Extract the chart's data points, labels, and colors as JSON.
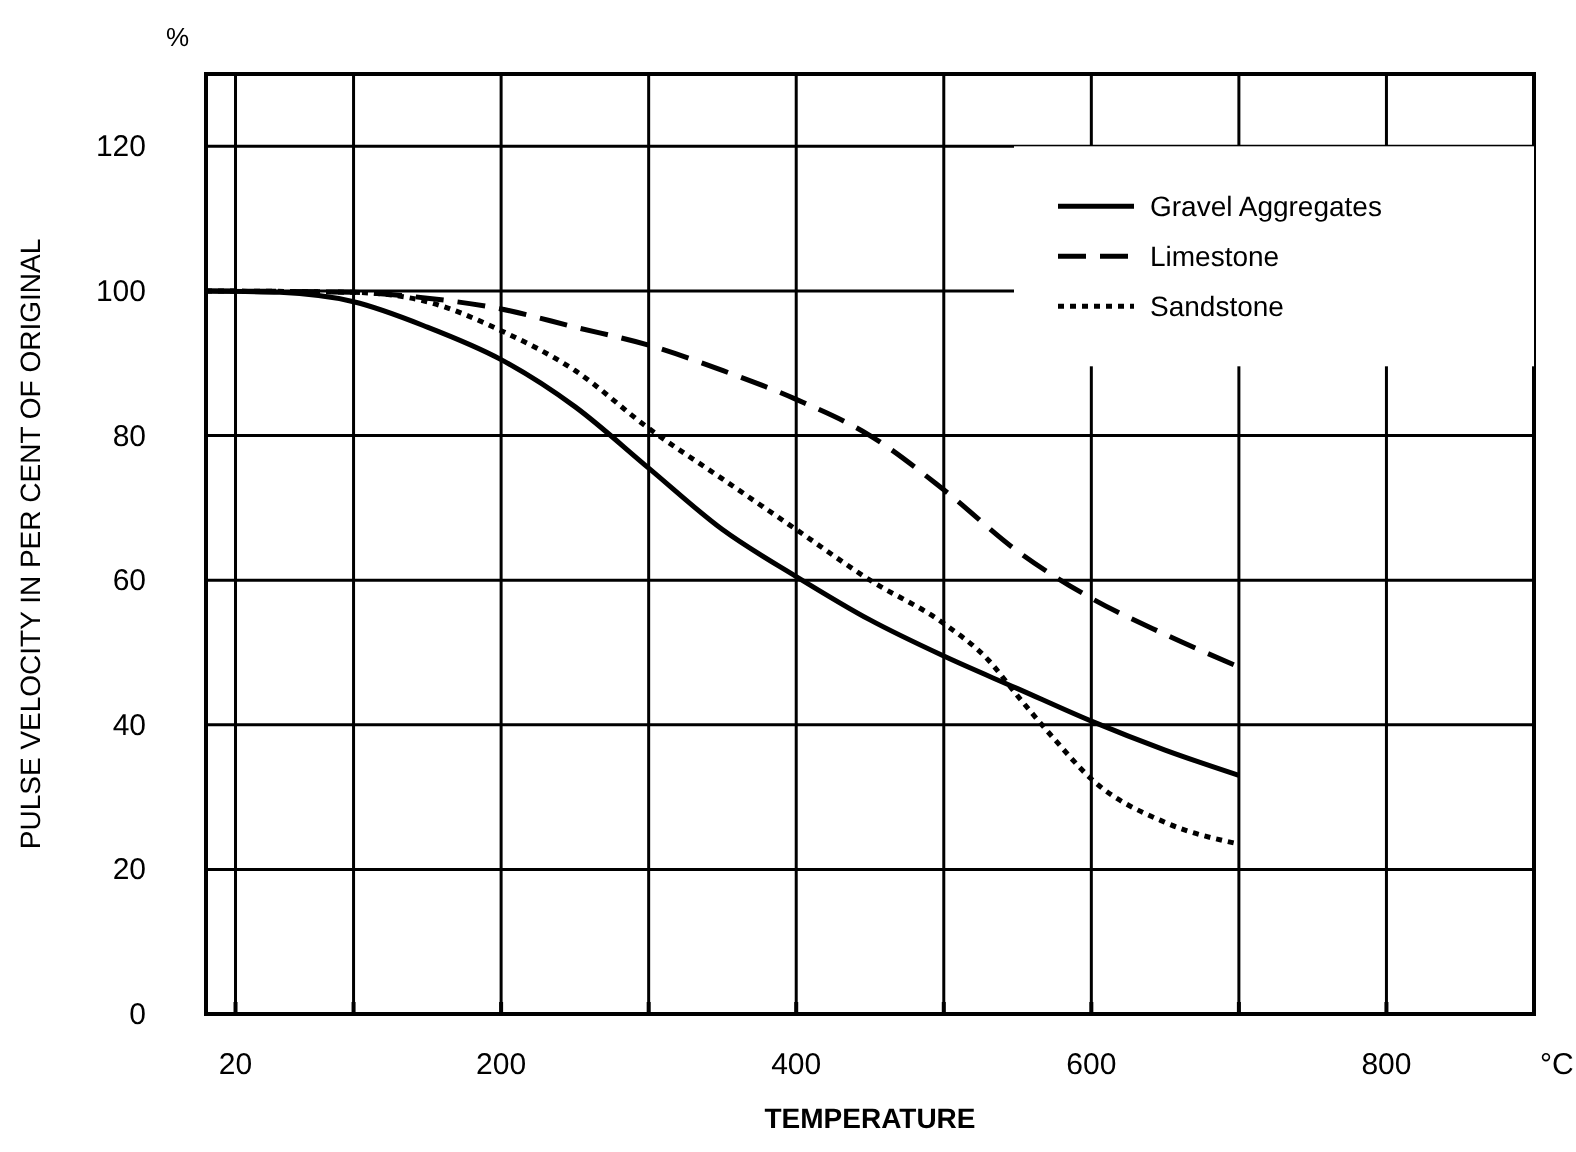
{
  "chart_data": {
    "type": "line",
    "xlabel": "TEMPERATURE",
    "ylabel": "PULSE VELOCITY IN PER CENT OF ORIGINAL",
    "annotations": [
      "%",
      "°C"
    ],
    "xlim": [
      0,
      900
    ],
    "ylim": [
      0,
      130
    ],
    "xticks": [
      {
        "value": 20,
        "label": "20"
      },
      {
        "value": 100,
        "label": null
      },
      200,
      {
        "value": 300,
        "label": null
      },
      400,
      {
        "value": 500,
        "label": null
      },
      600,
      {
        "value": 700,
        "label": null
      },
      800,
      {
        "value": 900,
        "label": null
      }
    ],
    "yticks": [
      0,
      20,
      40,
      60,
      80,
      100,
      120
    ],
    "grid": true,
    "legend": "top right",
    "marker": "none",
    "series": [
      {
        "name": "Gravel Aggregates",
        "color": "#000000",
        "line_style": "solid",
        "x": [
          0,
          50,
          100,
          150,
          200,
          250,
          300,
          350,
          400,
          450,
          500,
          550,
          600,
          650,
          700
        ],
        "values": [
          100,
          99.8,
          98.5,
          95,
          90.5,
          84,
          75.5,
          67,
          60.5,
          54.5,
          49.5,
          45,
          40.5,
          36.5,
          33
        ]
      },
      {
        "name": "Limestone",
        "color": "#000000",
        "line_style": "dashed",
        "x": [
          0,
          100,
          150,
          200,
          250,
          300,
          350,
          400,
          450,
          500,
          550,
          600,
          650,
          700
        ],
        "values": [
          100,
          99.8,
          99,
          97.5,
          95,
          92.5,
          89,
          85,
          80,
          72.5,
          64,
          57.5,
          52.5,
          48
        ]
      },
      {
        "name": "Sandstone",
        "color": "#000000",
        "line_style": "dotted",
        "x": [
          0,
          100,
          150,
          200,
          250,
          300,
          350,
          400,
          450,
          500,
          530,
          550,
          575,
          600,
          650,
          700
        ],
        "values": [
          100,
          99.8,
          98.5,
          94.5,
          89,
          81,
          74,
          67,
          60,
          54,
          49,
          44,
          38,
          32.5,
          26.5,
          23.5
        ]
      }
    ]
  }
}
